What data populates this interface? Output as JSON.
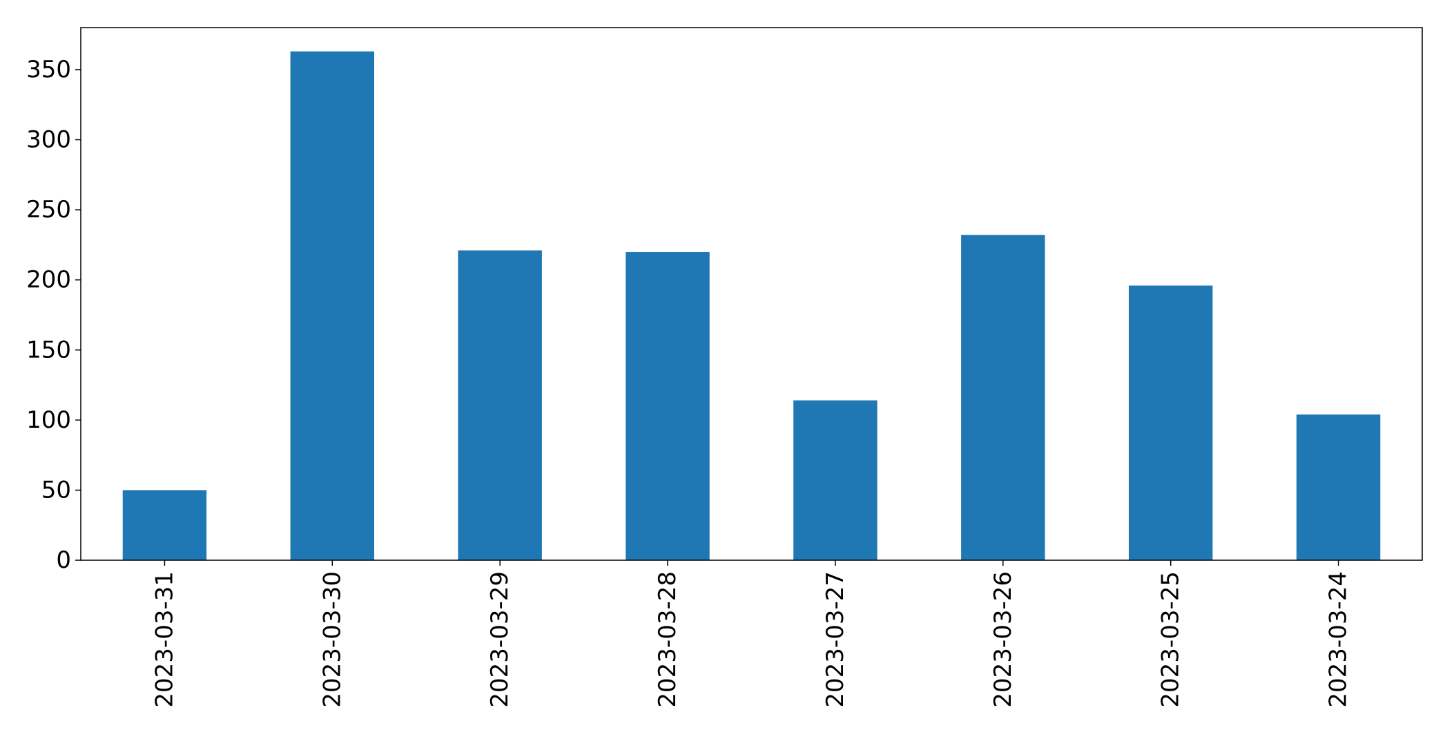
{
  "chart_data": {
    "type": "bar",
    "categories": [
      "2023-03-31",
      "2023-03-30",
      "2023-03-29",
      "2023-03-28",
      "2023-03-27",
      "2023-03-26",
      "2023-03-25",
      "2023-03-24"
    ],
    "values": [
      50,
      363,
      221,
      220,
      114,
      232,
      196,
      104
    ],
    "title": "",
    "xlabel": "",
    "ylabel": "",
    "ylim": [
      0,
      380
    ],
    "yticks": [
      0,
      50,
      100,
      150,
      200,
      250,
      300,
      350
    ],
    "grid": false,
    "legend": "none",
    "bar_color": "#1f77b4"
  }
}
